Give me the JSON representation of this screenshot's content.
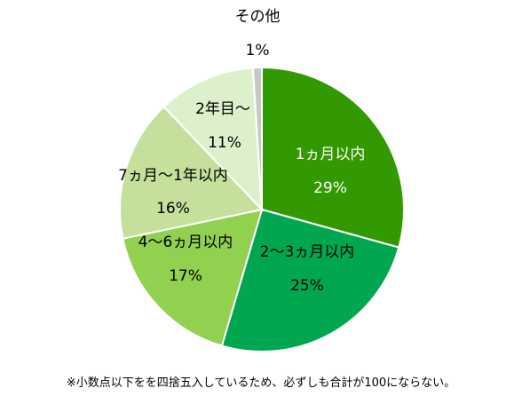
{
  "chart_data": {
    "type": "pie",
    "slices": [
      {
        "label": "1ヵ月以内",
        "value": 29,
        "value_label": "29%",
        "color": "#339900",
        "text_color": "#ffffff"
      },
      {
        "label": "2～3ヵ月以内",
        "value": 25,
        "value_label": "25%",
        "color": "#00A650",
        "text_color": "#000000"
      },
      {
        "label": "4～6ヵ月以内",
        "value": 17,
        "value_label": "17%",
        "color": "#92D050",
        "text_color": "#000000"
      },
      {
        "label": "7ヵ月～1年以内",
        "value": 16,
        "value_label": "16%",
        "color": "#C4E09C",
        "text_color": "#000000"
      },
      {
        "label": "2年目～",
        "value": 11,
        "value_label": "11%",
        "color": "#DDF0CC",
        "text_color": "#000000"
      },
      {
        "label": "その他",
        "value": 1,
        "value_label": "1%",
        "color": "#C8C8C8",
        "text_color": "#000000"
      }
    ],
    "start_angle": "12 o'clock, clockwise",
    "footnote": "※小数点以下をを四捨五入しているため、必ずしも合計が100にならない。"
  }
}
